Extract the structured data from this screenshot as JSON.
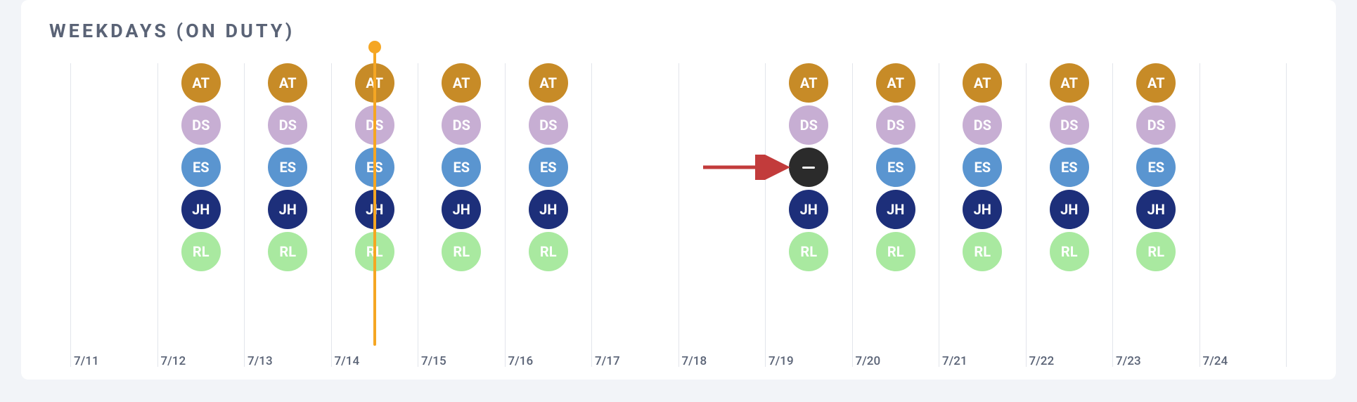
{
  "title": "WEEKDAYS (ON DUTY)",
  "colors": {
    "page_bg": "#f2f4f8",
    "card_bg": "#ffffff",
    "title": "#5a6376",
    "grid_line": "#e2e5eb",
    "date_label": "#5a6376",
    "marker": "#f5a623",
    "arrow": "#c23b3b",
    "people": {
      "AT": "#c78b27",
      "DS": "#c7aed3",
      "ES": "#5a95d0",
      "JH": "#1d2f7a",
      "RL": "#a9e9a0",
      "blank": "#2b2b2b"
    }
  },
  "marker_day": "7/14",
  "arrow_target_day": "7/19",
  "days": [
    {
      "date": "7/11",
      "people": []
    },
    {
      "date": "7/12",
      "people": [
        {
          "key": "AT",
          "label": "AT"
        },
        {
          "key": "DS",
          "label": "DS"
        },
        {
          "key": "ES",
          "label": "ES"
        },
        {
          "key": "JH",
          "label": "JH"
        },
        {
          "key": "RL",
          "label": "RL"
        }
      ]
    },
    {
      "date": "7/13",
      "people": [
        {
          "key": "AT",
          "label": "AT"
        },
        {
          "key": "DS",
          "label": "DS"
        },
        {
          "key": "ES",
          "label": "ES"
        },
        {
          "key": "JH",
          "label": "JH"
        },
        {
          "key": "RL",
          "label": "RL"
        }
      ]
    },
    {
      "date": "7/14",
      "people": [
        {
          "key": "AT",
          "label": "AT"
        },
        {
          "key": "DS",
          "label": "DS"
        },
        {
          "key": "ES",
          "label": "ES"
        },
        {
          "key": "JH",
          "label": "JH"
        },
        {
          "key": "RL",
          "label": "RL"
        }
      ]
    },
    {
      "date": "7/15",
      "people": [
        {
          "key": "AT",
          "label": "AT"
        },
        {
          "key": "DS",
          "label": "DS"
        },
        {
          "key": "ES",
          "label": "ES"
        },
        {
          "key": "JH",
          "label": "JH"
        },
        {
          "key": "RL",
          "label": "RL"
        }
      ]
    },
    {
      "date": "7/16",
      "people": [
        {
          "key": "AT",
          "label": "AT"
        },
        {
          "key": "DS",
          "label": "DS"
        },
        {
          "key": "ES",
          "label": "ES"
        },
        {
          "key": "JH",
          "label": "JH"
        },
        {
          "key": "RL",
          "label": "RL"
        }
      ]
    },
    {
      "date": "7/17",
      "people": []
    },
    {
      "date": "7/18",
      "people": []
    },
    {
      "date": "7/19",
      "people": [
        {
          "key": "AT",
          "label": "AT"
        },
        {
          "key": "DS",
          "label": "DS"
        },
        {
          "key": "blank",
          "label": ""
        },
        {
          "key": "JH",
          "label": "JH"
        },
        {
          "key": "RL",
          "label": "RL"
        }
      ]
    },
    {
      "date": "7/20",
      "people": [
        {
          "key": "AT",
          "label": "AT"
        },
        {
          "key": "DS",
          "label": "DS"
        },
        {
          "key": "ES",
          "label": "ES"
        },
        {
          "key": "JH",
          "label": "JH"
        },
        {
          "key": "RL",
          "label": "RL"
        }
      ]
    },
    {
      "date": "7/21",
      "people": [
        {
          "key": "AT",
          "label": "AT"
        },
        {
          "key": "DS",
          "label": "DS"
        },
        {
          "key": "ES",
          "label": "ES"
        },
        {
          "key": "JH",
          "label": "JH"
        },
        {
          "key": "RL",
          "label": "RL"
        }
      ]
    },
    {
      "date": "7/22",
      "people": [
        {
          "key": "AT",
          "label": "AT"
        },
        {
          "key": "DS",
          "label": "DS"
        },
        {
          "key": "ES",
          "label": "ES"
        },
        {
          "key": "JH",
          "label": "JH"
        },
        {
          "key": "RL",
          "label": "RL"
        }
      ]
    },
    {
      "date": "7/23",
      "people": [
        {
          "key": "AT",
          "label": "AT"
        },
        {
          "key": "DS",
          "label": "DS"
        },
        {
          "key": "ES",
          "label": "ES"
        },
        {
          "key": "JH",
          "label": "JH"
        },
        {
          "key": "RL",
          "label": "RL"
        }
      ]
    },
    {
      "date": "7/24",
      "people": []
    }
  ]
}
